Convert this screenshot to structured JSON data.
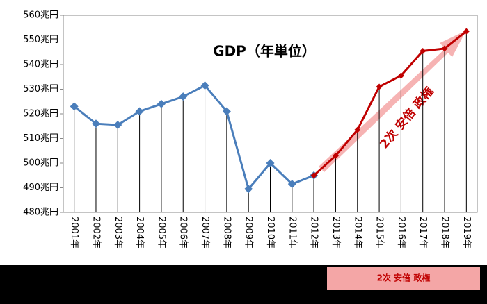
{
  "chart_data": {
    "type": "line",
    "title": "GDP（年単位）",
    "categories": [
      "2001年",
      "2002年",
      "2003年",
      "2004年",
      "2005年",
      "2006年",
      "2007年",
      "2008年",
      "2009年",
      "2010年",
      "2011年",
      "2012年",
      "2013年",
      "2014年",
      "2015年",
      "2016年",
      "2017年",
      "2018年",
      "2019年"
    ],
    "series": [
      {
        "color": "#4a7ebb",
        "values": [
          523,
          516,
          515.5,
          521,
          524,
          527,
          531.5,
          521,
          489.5,
          500,
          491.5,
          495,
          null,
          null,
          null,
          null,
          null,
          null,
          null
        ]
      },
      {
        "color": "#c00000",
        "values": [
          null,
          null,
          null,
          null,
          null,
          null,
          null,
          null,
          null,
          null,
          null,
          495,
          503,
          513.5,
          531,
          535.5,
          545.5,
          546.5,
          553.5
        ]
      }
    ],
    "ylim": [
      480,
      560
    ],
    "yticks": [
      {
        "value": 480,
        "label": "480兆円"
      },
      {
        "value": 490,
        "label": "490兆円"
      },
      {
        "value": 500,
        "label": "500兆円"
      },
      {
        "value": 510,
        "label": "510兆円"
      },
      {
        "value": 520,
        "label": "520兆円"
      },
      {
        "value": 530,
        "label": "530兆円"
      },
      {
        "value": 540,
        "label": "540兆円"
      },
      {
        "value": 550,
        "label": "550兆円"
      },
      {
        "value": 560,
        "label": "560兆円"
      }
    ],
    "grid": false,
    "annotations": [
      "2次 安倍 政権",
      "2次 安倍 政権"
    ]
  }
}
